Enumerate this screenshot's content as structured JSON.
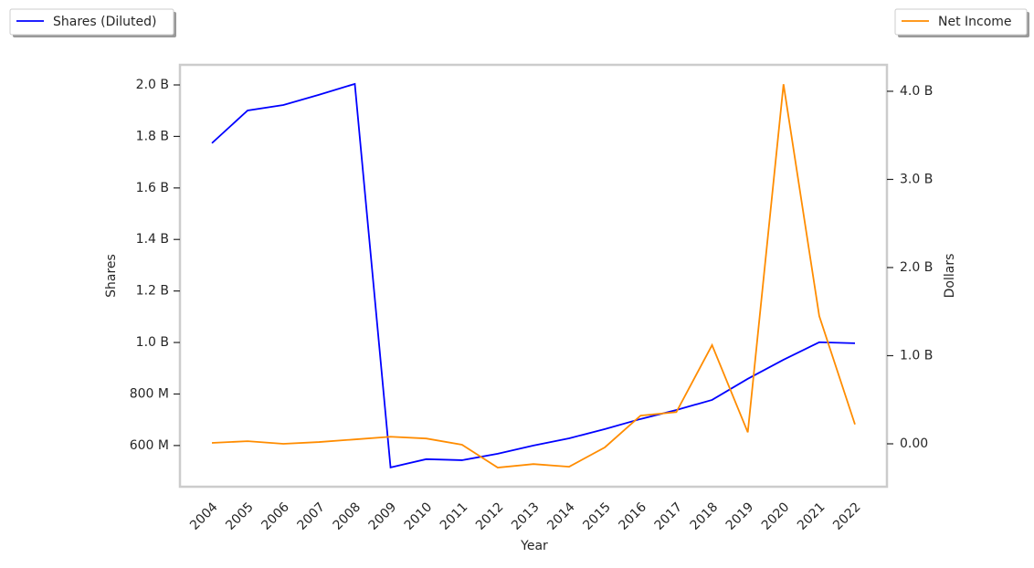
{
  "chart_data": {
    "type": "line",
    "x_label": "Year",
    "y_label": "Shares",
    "y2_label": "Dollars",
    "categories": [
      "2004",
      "2005",
      "2006",
      "2007",
      "2008",
      "2009",
      "2010",
      "2011",
      "2012",
      "2013",
      "2014",
      "2015",
      "2016",
      "2017",
      "2018",
      "2019",
      "2020",
      "2021",
      "2022"
    ],
    "series": [
      {
        "name": "Shares (Diluted)",
        "color": "#0000ff",
        "axis": "y",
        "values": [
          1774000000,
          1901000000,
          1922000000,
          1962000000,
          2004000000,
          515000000,
          547000000,
          543000000,
          568000000,
          600000000,
          628000000,
          664000000,
          703000000,
          738000000,
          777000000,
          859000000,
          933000000,
          1001000000,
          997000000
        ]
      },
      {
        "name": "Net Income",
        "color": "#ff8c00",
        "axis": "y2",
        "values": [
          10000000,
          30000000,
          0,
          20000000,
          50000000,
          80000000,
          60000000,
          -10000000,
          -270000000,
          -230000000,
          -260000000,
          -40000000,
          320000000,
          360000000,
          1120000000,
          130000000,
          4080000000,
          1450000000,
          220000000
        ]
      }
    ],
    "ylim": [
      440000000,
      2078000000
    ],
    "yticks": [
      {
        "value": 600000000,
        "label": "600 M"
      },
      {
        "value": 800000000,
        "label": "800 M"
      },
      {
        "value": 1000000000,
        "label": "1.0 B"
      },
      {
        "value": 1200000000,
        "label": "1.2 B"
      },
      {
        "value": 1400000000,
        "label": "1.4 B"
      },
      {
        "value": 1600000000,
        "label": "1.6 B"
      },
      {
        "value": 1800000000,
        "label": "1.8 B"
      },
      {
        "value": 2000000000,
        "label": "2.0 B"
      }
    ],
    "y2lim": [
      -487000000,
      4300000000
    ],
    "y2ticks": [
      {
        "value": 0,
        "label": "0.00"
      },
      {
        "value": 1000000000,
        "label": "1.0 B"
      },
      {
        "value": 2000000000,
        "label": "2.0 B"
      },
      {
        "value": 3000000000,
        "label": "3.0 B"
      },
      {
        "value": 4000000000,
        "label": "4.0 B"
      }
    ],
    "grid": false
  }
}
